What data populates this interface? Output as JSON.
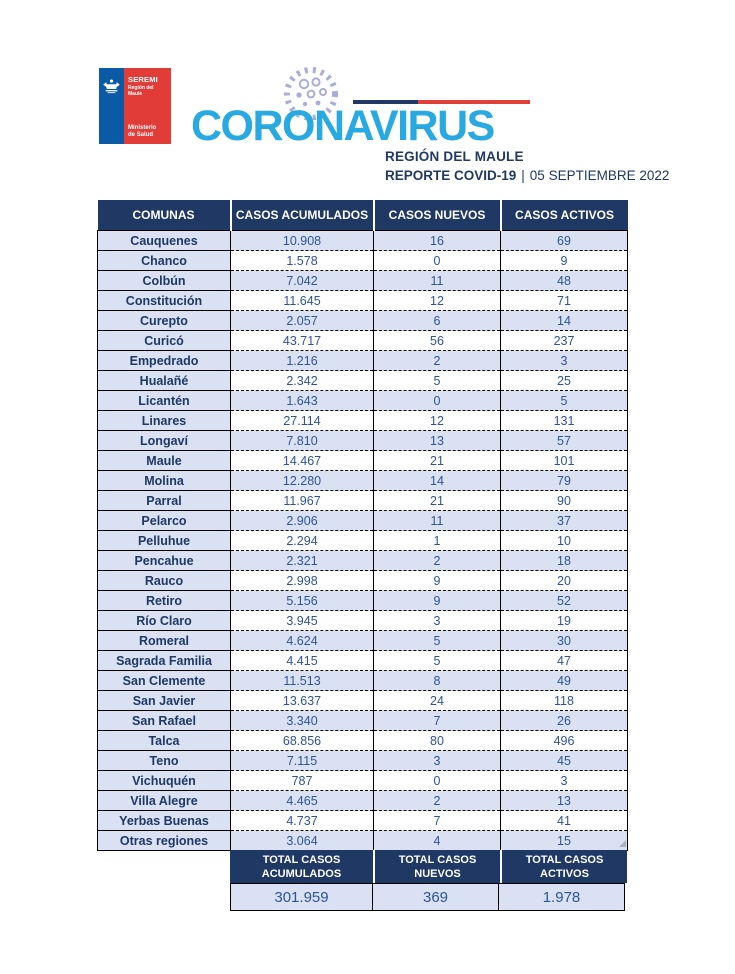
{
  "logo": {
    "seremi": "SEREMI",
    "region": "Región del Maule",
    "ministry": "Ministerio de Salud"
  },
  "header": {
    "brand": "CORONAVIRUS",
    "region_title": "REGIÓN DEL MAULE",
    "report_label": "REPORTE COVID-19",
    "report_separator": "|",
    "report_date": "05 SEPTIEMBRE 2022"
  },
  "icons": {
    "coat_of_arms": "chile-coat-of-arms",
    "virus": "coronavirus-virus"
  },
  "colors": {
    "navy": "#1f3864",
    "row_blue": "#d9e1f2",
    "value_blue": "#2f5496",
    "brand_blue": "#29a9e1",
    "accent_red": "#e04038",
    "logo_blue": "#0b5aa5",
    "logo_red": "#e23c39"
  },
  "table": {
    "columns": [
      "COMUNAS",
      "CASOS ACUMULADOS",
      "CASOS NUEVOS",
      "CASOS ACTIVOS"
    ],
    "rows": [
      [
        "Cauquenes",
        "10.908",
        "16",
        "69"
      ],
      [
        "Chanco",
        "1.578",
        "0",
        "9"
      ],
      [
        "Colbún",
        "7.042",
        "11",
        "48"
      ],
      [
        "Constitución",
        "11.645",
        "12",
        "71"
      ],
      [
        "Curepto",
        "2.057",
        "6",
        "14"
      ],
      [
        "Curicó",
        "43.717",
        "56",
        "237"
      ],
      [
        "Empedrado",
        "1.216",
        "2",
        "3"
      ],
      [
        "Hualañé",
        "2.342",
        "5",
        "25"
      ],
      [
        "Licantén",
        "1.643",
        "0",
        "5"
      ],
      [
        "Linares",
        "27.114",
        "12",
        "131"
      ],
      [
        "Longaví",
        "7.810",
        "13",
        "57"
      ],
      [
        "Maule",
        "14.467",
        "21",
        "101"
      ],
      [
        "Molina",
        "12.280",
        "14",
        "79"
      ],
      [
        "Parral",
        "11.967",
        "21",
        "90"
      ],
      [
        "Pelarco",
        "2.906",
        "11",
        "37"
      ],
      [
        "Pelluhue",
        "2.294",
        "1",
        "10"
      ],
      [
        "Pencahue",
        "2.321",
        "2",
        "18"
      ],
      [
        "Rauco",
        "2.998",
        "9",
        "20"
      ],
      [
        "Retiro",
        "5.156",
        "9",
        "52"
      ],
      [
        "Río Claro",
        "3.945",
        "3",
        "19"
      ],
      [
        "Romeral",
        "4.624",
        "5",
        "30"
      ],
      [
        "Sagrada Familia",
        "4.415",
        "5",
        "47"
      ],
      [
        "San Clemente",
        "11.513",
        "8",
        "49"
      ],
      [
        "San Javier",
        "13.637",
        "24",
        "118"
      ],
      [
        "San Rafael",
        "3.340",
        "7",
        "26"
      ],
      [
        "Talca",
        "68.856",
        "80",
        "496"
      ],
      [
        "Teno",
        "7.115",
        "3",
        "45"
      ],
      [
        "Vichuquén",
        "787",
        "0",
        "3"
      ],
      [
        "Villa Alegre",
        "4.465",
        "2",
        "13"
      ],
      [
        "Yerbas Buenas",
        "4.737",
        "7",
        "41"
      ],
      [
        "Otras regiones",
        "3.064",
        "4",
        "15"
      ]
    ]
  },
  "totals": {
    "columns": [
      {
        "label_line1": "TOTAL CASOS",
        "label_line2": "ACUMULADOS",
        "value": "301.959"
      },
      {
        "label_line1": "TOTAL CASOS",
        "label_line2": "NUEVOS",
        "value": "369"
      },
      {
        "label_line1": "TOTAL CASOS",
        "label_line2": "ACTIVOS",
        "value": "1.978"
      }
    ]
  }
}
